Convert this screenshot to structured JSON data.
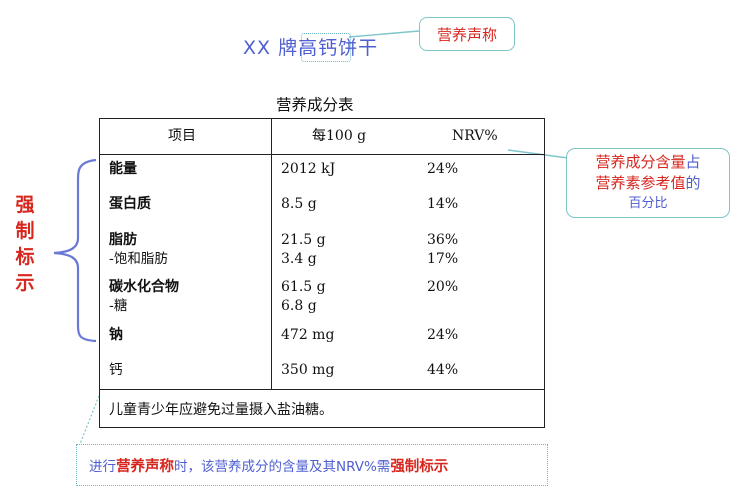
{
  "product_title": "XX 牌高钙饼干",
  "claim_callout": "营养声称",
  "table_caption": "营养成分表",
  "table": {
    "headers": [
      "项目",
      "每100 g",
      "NRV%"
    ],
    "rows": [
      {
        "item": "能量",
        "sub_item": "",
        "amount": "2012 kJ",
        "sub_amount": "",
        "nrv": "24%",
        "sub_nrv": ""
      },
      {
        "item": "蛋白质",
        "sub_item": "",
        "amount": "8.5 g",
        "sub_amount": "",
        "nrv": "14%",
        "sub_nrv": ""
      },
      {
        "item": "脂肪",
        "sub_item": "-饱和脂肪",
        "amount": "21.5 g",
        "sub_amount": "3.4 g",
        "nrv": "36%",
        "sub_nrv": "17%"
      },
      {
        "item": "碳水化合物",
        "sub_item": "-糖",
        "amount": "61.5 g",
        "sub_amount": "6.8 g",
        "nrv": "20%",
        "sub_nrv": ""
      },
      {
        "item": "钠",
        "sub_item": "",
        "amount": "472 mg",
        "sub_amount": "",
        "nrv": "24%",
        "sub_nrv": ""
      },
      {
        "item": "钙",
        "sub_item": "",
        "amount": "350 mg",
        "sub_amount": "",
        "nrv": "44%",
        "sub_nrv": ""
      }
    ],
    "footnote": "儿童青少年应避免过量摄入盐油糖。"
  },
  "nrv_callout": {
    "line1_red": "营养成分含量",
    "line1_blue": "占",
    "line2_red": "营养素参考值",
    "line2_blue": "的",
    "line3": "百分比"
  },
  "mandatory_label": [
    "强",
    "制",
    "标",
    "示"
  ],
  "bottom_note": {
    "part1": "进行",
    "part2": "营养声称",
    "part3": "时，该营养成分的含量及其NRV%需",
    "part4": "强制标示"
  },
  "colors": {
    "accent_blue": "#4f5fd0",
    "accent_red": "#d7261e",
    "callout_border": "#7fc6c9"
  }
}
